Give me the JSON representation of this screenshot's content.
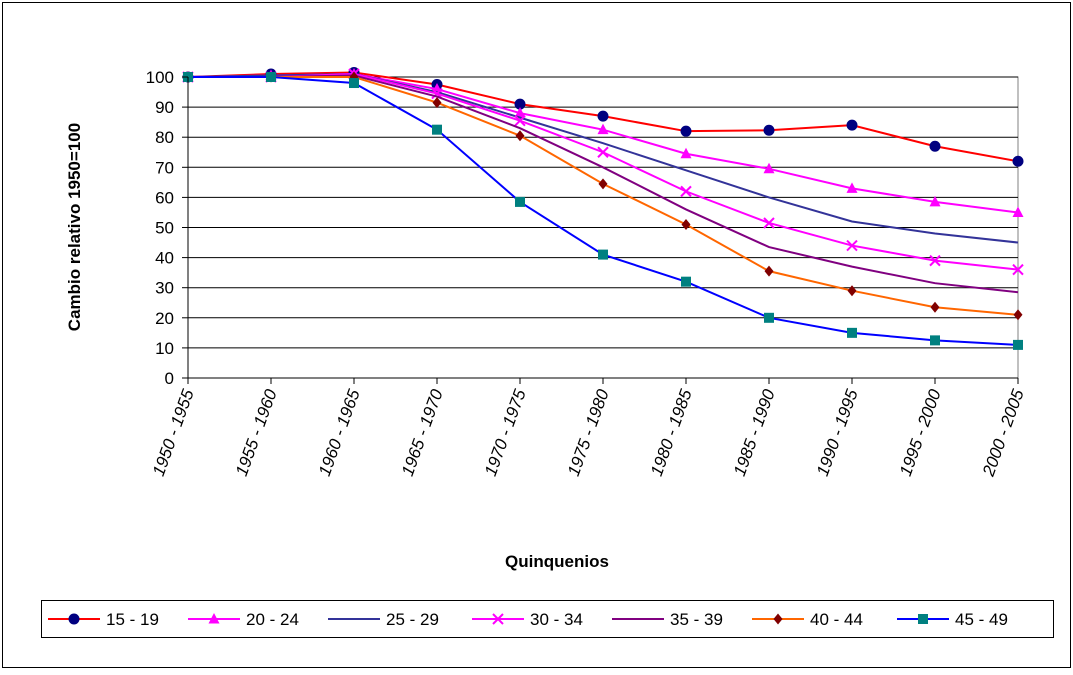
{
  "chart_data": {
    "type": "line",
    "title": "",
    "xlabel": "Quinquenios",
    "ylabel": "Cambio relativo 1950=100",
    "ylim": [
      0,
      100
    ],
    "yticks": [
      0,
      10,
      20,
      30,
      40,
      50,
      60,
      70,
      80,
      90,
      100
    ],
    "grid": true,
    "legend": "bottom",
    "categories": [
      "1950 - 1955",
      "1955 - 1960",
      "1960 - 1965",
      "1965 - 1970",
      "1970 - 1975",
      "1975 - 1980",
      "1980 - 1985",
      "1985 - 1990",
      "1990 - 1995",
      "1995 - 2000",
      "2000 - 2005"
    ],
    "series": [
      {
        "name": "15 - 19",
        "color": "#ff0000",
        "marker": "circle",
        "markerColor": "#000080",
        "values": [
          100,
          101,
          101.5,
          97.5,
          91,
          87,
          82,
          82.3,
          84,
          77,
          72
        ]
      },
      {
        "name": "20 - 24",
        "color": "#ff00ff",
        "marker": "triangle",
        "markerColor": "#ff00ff",
        "values": [
          100,
          100.5,
          101,
          96,
          88,
          82.5,
          74.5,
          69.5,
          63,
          58.5,
          55
        ]
      },
      {
        "name": "25 - 29",
        "color": "#333399",
        "marker": "none",
        "markerColor": "#333399",
        "values": [
          100,
          100.5,
          101,
          95,
          86.5,
          78,
          69,
          60,
          52,
          48,
          45
        ]
      },
      {
        "name": "30 - 34",
        "color": "#ff00ff",
        "marker": "x",
        "markerColor": "#ff00ff",
        "values": [
          100,
          100,
          101,
          94.5,
          85.5,
          75,
          62,
          51.5,
          44,
          39,
          36
        ]
      },
      {
        "name": "35 - 39",
        "color": "#800080",
        "marker": "none",
        "markerColor": "#800080",
        "values": [
          100,
          100,
          100.5,
          93.5,
          83,
          70,
          56,
          43.5,
          37,
          31.5,
          28.5
        ]
      },
      {
        "name": "40 - 44",
        "color": "#ff6600",
        "marker": "diamond",
        "markerColor": "#800000",
        "values": [
          100,
          100,
          100,
          91.5,
          80.5,
          64.5,
          51,
          35.5,
          29,
          23.5,
          21
        ]
      },
      {
        "name": "45 - 49",
        "color": "#0000ff",
        "marker": "square",
        "markerColor": "#008080",
        "values": [
          100,
          100,
          98,
          82.5,
          58.5,
          41,
          32,
          20,
          15,
          12.5,
          11
        ]
      }
    ]
  }
}
